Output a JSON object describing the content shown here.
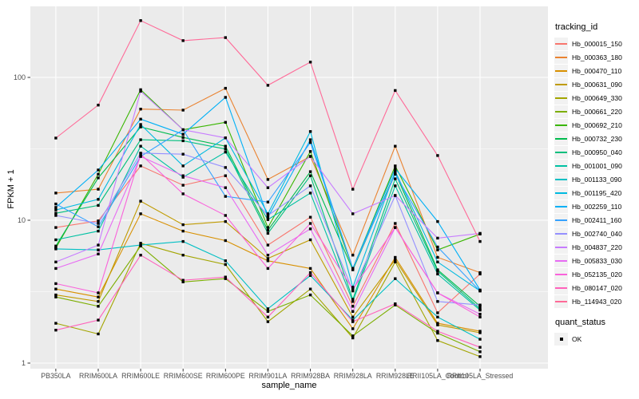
{
  "chart_data": {
    "type": "line",
    "xlabel": "sample_name",
    "ylabel": "FPKM + 1",
    "y_scale": "log10",
    "y_ticks": [
      1,
      10,
      100
    ],
    "y_minor_ticks": [
      3.162,
      31.62,
      316.2
    ],
    "grid": true,
    "panel_bg": "#EBEBEB",
    "grid_color": "#FFFFFF",
    "tick_label_color": "#4D4D4D",
    "point_shape": "filled-square",
    "point_color": "#000000",
    "legend_position": "right",
    "legend": {
      "series_title": "tracking_id",
      "shape_title": "quant_status",
      "shape_label": "OK"
    },
    "categories": [
      "PB350LA",
      "RRIM600LA",
      "RRIM600LE",
      "RRIM600SE",
      "RRIM600PE",
      "RRIM901LA",
      "RRIM928BA",
      "RRIM928LA",
      "RRIM928LE",
      "RRII105LA_Control",
      "RRII105LA_Stressed"
    ],
    "series": [
      {
        "name": "Hb_000015_150",
        "color": "#F8766D",
        "values": [
          8.9,
          9.9,
          24,
          17.6,
          20.5,
          6.7,
          10.5,
          2.5,
          9.5,
          2.25,
          4.2
        ]
      },
      {
        "name": "Hb_000363_180",
        "color": "#EA8331",
        "values": [
          15.5,
          16.5,
          60,
          59,
          84,
          19.3,
          28,
          5.7,
          33,
          5.5,
          4.3
        ]
      },
      {
        "name": "Hb_000470_110",
        "color": "#D89000",
        "values": [
          3.3,
          2.9,
          11.1,
          8.4,
          7.2,
          5.2,
          4.6,
          1.74,
          5.5,
          1.9,
          1.67
        ]
      },
      {
        "name": "Hb_000631_090",
        "color": "#C09B00",
        "values": [
          3.0,
          2.7,
          13.6,
          9.3,
          9.8,
          5.4,
          7.3,
          2.1,
          5.3,
          1.85,
          1.63
        ]
      },
      {
        "name": "Hb_000649_330",
        "color": "#A3A500",
        "values": [
          1.9,
          1.6,
          6.9,
          5.7,
          4.9,
          1.95,
          3.3,
          1.5,
          5.1,
          1.44,
          1.11
        ]
      },
      {
        "name": "Hb_000661_220",
        "color": "#7CAE00",
        "values": [
          2.9,
          2.5,
          6.6,
          3.7,
          3.9,
          2.3,
          3.0,
          1.55,
          2.55,
          1.62,
          1.2
        ]
      },
      {
        "name": "Hb_000692_210",
        "color": "#39B600",
        "values": [
          6.4,
          21,
          82,
          43,
          48.5,
          8.9,
          30.3,
          4.6,
          24,
          6.2,
          8.0
        ]
      },
      {
        "name": "Hb_000732_230",
        "color": "#00BB4E",
        "values": [
          6.6,
          19.8,
          45,
          38,
          33,
          8.5,
          21.9,
          4.5,
          21.5,
          4.5,
          2.5
        ]
      },
      {
        "name": "Hb_000950_040",
        "color": "#00BF7D",
        "values": [
          11.2,
          12.7,
          36.6,
          36,
          31.5,
          8.1,
          20.5,
          2.8,
          19.5,
          4.4,
          2.4
        ]
      },
      {
        "name": "Hb_001001_090",
        "color": "#00C1A3",
        "values": [
          7.3,
          8.4,
          33,
          20,
          30,
          10.1,
          15.5,
          2.7,
          17.4,
          4.2,
          2.35
        ]
      },
      {
        "name": "Hb_001133_090",
        "color": "#00BFC4",
        "values": [
          6.3,
          6.2,
          6.7,
          7.1,
          5.2,
          2.4,
          4.1,
          2.0,
          3.9,
          2.1,
          1.47
        ]
      },
      {
        "name": "Hb_001195_420",
        "color": "#00BAE0",
        "values": [
          11.8,
          14,
          46.8,
          24,
          37.7,
          11.1,
          41.8,
          3.4,
          22,
          5.1,
          3.2
        ]
      },
      {
        "name": "Hb_002259_110",
        "color": "#00B0F6",
        "values": [
          12.3,
          22.5,
          51,
          40,
          72.5,
          10.5,
          36.6,
          4.6,
          23,
          9.8,
          3.25
        ]
      },
      {
        "name": "Hb_002411_160",
        "color": "#35A2FF",
        "values": [
          13.0,
          9.0,
          28,
          43,
          14.7,
          13.4,
          35,
          4.6,
          21,
          6.5,
          3.2
        ]
      },
      {
        "name": "Hb_002740_040",
        "color": "#9590FF",
        "values": [
          10.8,
          9.5,
          29.5,
          29,
          23.4,
          10.8,
          17.4,
          3.2,
          14.9,
          2.7,
          2.55
        ]
      },
      {
        "name": "Hb_004837_220",
        "color": "#C77CFF",
        "values": [
          5.1,
          6.7,
          80,
          43,
          37.7,
          16.9,
          28,
          11.1,
          14.9,
          7.5,
          8.1
        ]
      },
      {
        "name": "Hb_005833_030",
        "color": "#E76BF3",
        "values": [
          4.6,
          5.8,
          28,
          20.5,
          16.9,
          5.7,
          8.7,
          2.3,
          8.9,
          3.1,
          2.2
        ]
      },
      {
        "name": "Hb_052135_020",
        "color": "#FA62DB",
        "values": [
          3.6,
          3.1,
          29,
          15.3,
          10.8,
          4.6,
          9.5,
          3.3,
          8.9,
          3.1,
          2.1
        ]
      },
      {
        "name": "Hb_080147_020",
        "color": "#FF62BC",
        "values": [
          1.7,
          2.0,
          5.7,
          3.8,
          4.0,
          2.1,
          4.3,
          1.95,
          2.6,
          1.67,
          1.29
        ]
      },
      {
        "name": "Hb_114943_020",
        "color": "#FF6A98",
        "values": [
          37.6,
          64,
          250,
          181,
          190,
          88,
          128,
          16.5,
          81,
          28.4,
          7.1
        ]
      }
    ]
  }
}
